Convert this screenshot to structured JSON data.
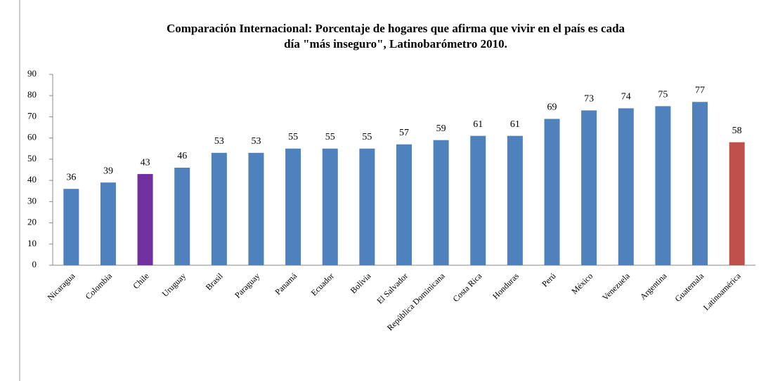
{
  "chart_data": {
    "type": "bar",
    "title": [
      "Comparación Internacional: Porcentaje de hogares que afirma que vivir en el país es cada",
      "día \"más inseguro\", Latinobarómetro 2010."
    ],
    "categories": [
      "Nicaragua",
      "Colombia",
      "Chile",
      "Uruguay",
      "Brasil",
      "Paraguay",
      "Panamá",
      "Ecuador",
      "Bolivia",
      "El Salvador",
      "República Dominicana",
      "Costa Rica",
      "Honduras",
      "Perú",
      "México",
      "Venezuela",
      "Argentina",
      "Guatemala",
      "Latinoamérica"
    ],
    "values": [
      36,
      39,
      43,
      46,
      53,
      53,
      55,
      55,
      55,
      57,
      59,
      61,
      61,
      69,
      73,
      74,
      75,
      77,
      58
    ],
    "colors": [
      "#4f81bd",
      "#4f81bd",
      "#7030a0",
      "#4f81bd",
      "#4f81bd",
      "#4f81bd",
      "#4f81bd",
      "#4f81bd",
      "#4f81bd",
      "#4f81bd",
      "#4f81bd",
      "#4f81bd",
      "#4f81bd",
      "#4f81bd",
      "#4f81bd",
      "#4f81bd",
      "#4f81bd",
      "#4f81bd",
      "#c0504d"
    ],
    "ylim": [
      0,
      90
    ],
    "yticks": [
      0,
      10,
      20,
      30,
      40,
      50,
      60,
      70,
      80,
      90
    ],
    "grid": false
  }
}
